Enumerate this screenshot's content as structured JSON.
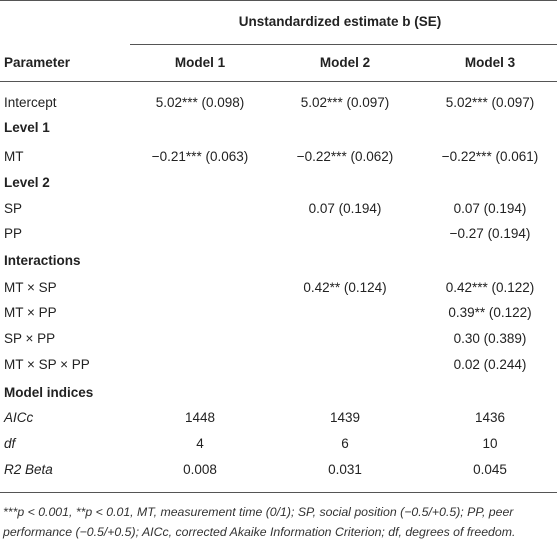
{
  "header": {
    "spanner": "Unstandardized estimate b (SE)",
    "columns": [
      "Parameter",
      "Model 1",
      "Model 2",
      "Model 3"
    ]
  },
  "rows": [
    {
      "label": "Intercept",
      "cells": [
        "5.02*** (0.098)",
        "5.02*** (0.097)",
        "5.02*** (0.097)"
      ]
    },
    {
      "label": "Level 1",
      "section": true
    },
    {
      "label": "MT",
      "cells": [
        "−0.21*** (0.063)",
        "−0.22*** (0.062)",
        "−0.22*** (0.061)"
      ]
    },
    {
      "label": "Level 2",
      "section": true
    },
    {
      "label": "SP",
      "cells": [
        null,
        "0.07 (0.194)",
        "0.07 (0.194)"
      ]
    },
    {
      "label": "PP",
      "cells": [
        null,
        null,
        "−0.27 (0.194)"
      ]
    },
    {
      "label": "Interactions",
      "section": true
    },
    {
      "label": "MT × SP",
      "cells": [
        null,
        "0.42** (0.124)",
        "0.42*** (0.122)"
      ]
    },
    {
      "label": "MT × PP",
      "cells": [
        null,
        null,
        "0.39** (0.122)"
      ]
    },
    {
      "label": "SP × PP",
      "cells": [
        null,
        null,
        "0.30 (0.389)"
      ]
    },
    {
      "label": "MT × SP × PP",
      "cells": [
        null,
        null,
        "0.02 (0.244)"
      ]
    },
    {
      "label": "Model indices",
      "section": true
    },
    {
      "label": "AICc",
      "italic": true,
      "cells": [
        "1448",
        "1439",
        "1436"
      ]
    },
    {
      "label": "df",
      "italic": true,
      "cells": [
        "4",
        "6",
        "10"
      ]
    },
    {
      "label": "R2 Beta",
      "italic": true,
      "cells": [
        "0.008",
        "0.031",
        "0.045"
      ]
    }
  ],
  "footnote": "***p < 0.001, **p < 0.01, MT, measurement time (0/1); SP, social position (−0.5/+0.5); PP, peer performance (−0.5/+0.5); AICc, corrected Akaike Information Criterion; df, degrees of freedom."
}
